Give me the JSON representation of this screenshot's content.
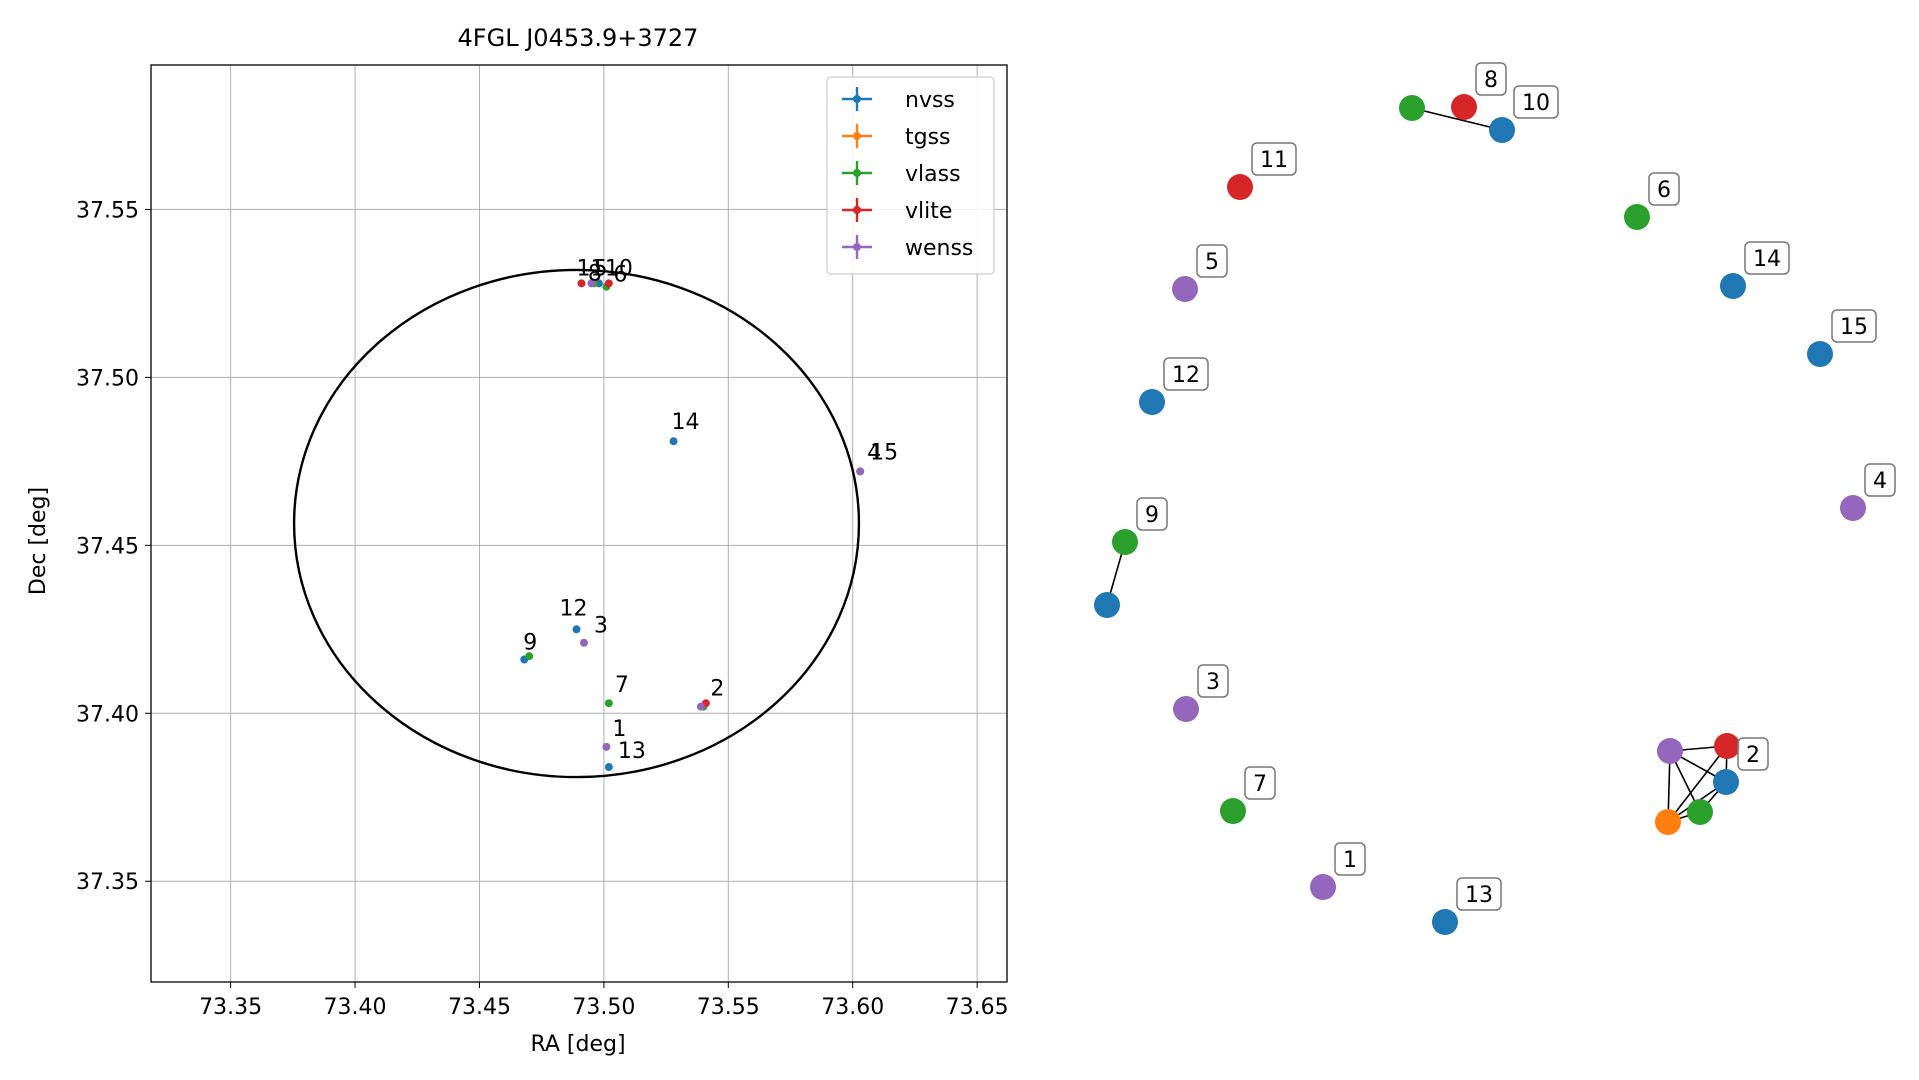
{
  "chart_data": [
    {
      "type": "scatter",
      "title": "4FGL J0453.9+3727",
      "xlabel": "RA [deg]",
      "ylabel": "Dec [deg]",
      "xlim": [
        73.318,
        73.662
      ],
      "ylim": [
        37.32,
        37.593
      ],
      "xticks": [
        73.35,
        73.4,
        73.45,
        73.5,
        73.55,
        73.6,
        73.65
      ],
      "xtick_labels": [
        "73.35",
        "73.40",
        "73.45",
        "73.50",
        "73.55",
        "73.60",
        "73.65"
      ],
      "yticks": [
        37.35,
        37.4,
        37.45,
        37.5,
        37.55
      ],
      "ytick_labels": [
        "37.35",
        "37.40",
        "37.45",
        "37.50",
        "37.55"
      ],
      "grid": true,
      "legend_position": "top-right",
      "ellipse": {
        "center": [
          73.489,
          37.4565
        ],
        "semi_ra": 0.1135,
        "semi_dec": 0.0755
      },
      "series": [
        {
          "name": "nvss",
          "color": "#1f77b4",
          "points": [
            {
              "x": 73.528,
              "y": 37.481,
              "label": "14"
            },
            {
              "x": 73.603,
              "y": 37.472,
              "label": "15"
            },
            {
              "x": 73.489,
              "y": 37.425,
              "label": "12"
            },
            {
              "x": 73.468,
              "y": 37.416,
              "label": "9"
            },
            {
              "x": 73.502,
              "y": 37.384,
              "label": "13"
            },
            {
              "x": 73.54,
              "y": 37.402,
              "label": "2"
            },
            {
              "x": 73.498,
              "y": 37.528,
              "label": "10"
            }
          ]
        },
        {
          "name": "tgss",
          "color": "#ff7f0e",
          "points": [
            {
              "x": 73.539,
              "y": 37.402,
              "label": "2"
            }
          ]
        },
        {
          "name": "vlass",
          "color": "#2ca02c",
          "points": [
            {
              "x": 73.501,
              "y": 37.527,
              "label": "6"
            },
            {
              "x": 73.496,
              "y": 37.528,
              "label": "8"
            },
            {
              "x": 73.47,
              "y": 37.417,
              "label": "9"
            },
            {
              "x": 73.502,
              "y": 37.403,
              "label": "7"
            },
            {
              "x": 73.54,
              "y": 37.402,
              "label": "2"
            }
          ]
        },
        {
          "name": "vlite",
          "color": "#d62728",
          "points": [
            {
              "x": 73.491,
              "y": 37.528,
              "label": "11"
            },
            {
              "x": 73.502,
              "y": 37.528,
              "label": "8"
            },
            {
              "x": 73.541,
              "y": 37.403,
              "label": "2"
            }
          ]
        },
        {
          "name": "wenss",
          "color": "#9467bd",
          "points": [
            {
              "x": 73.495,
              "y": 37.528,
              "label": "5"
            },
            {
              "x": 73.603,
              "y": 37.472,
              "label": "4"
            },
            {
              "x": 73.492,
              "y": 37.421,
              "label": "3"
            },
            {
              "x": 73.501,
              "y": 37.39,
              "label": "1"
            },
            {
              "x": 73.539,
              "y": 37.402,
              "label": "2"
            }
          ]
        }
      ],
      "annotations": [
        "14",
        "4",
        "15",
        "12",
        "3",
        "9",
        "7",
        "2",
        "1",
        "13",
        "11",
        "5",
        "8",
        "6",
        "10"
      ]
    },
    {
      "type": "network",
      "nodes": [
        {
          "id": "10",
          "color": "#1f77b4",
          "label": "10",
          "labeled": true
        },
        {
          "id": "8v",
          "color": "#2ca02c",
          "label": "",
          "labeled": false
        },
        {
          "id": "8",
          "color": "#d62728",
          "label": "8",
          "labeled": true
        },
        {
          "id": "11",
          "color": "#d62728",
          "label": "11",
          "labeled": true
        },
        {
          "id": "6",
          "color": "#2ca02c",
          "label": "6",
          "labeled": true
        },
        {
          "id": "5",
          "color": "#9467bd",
          "label": "5",
          "labeled": true
        },
        {
          "id": "14",
          "color": "#1f77b4",
          "label": "14",
          "labeled": true
        },
        {
          "id": "15",
          "color": "#1f77b4",
          "label": "15",
          "labeled": true
        },
        {
          "id": "12",
          "color": "#1f77b4",
          "label": "12",
          "labeled": true
        },
        {
          "id": "4",
          "color": "#9467bd",
          "label": "4",
          "labeled": true
        },
        {
          "id": "9",
          "color": "#2ca02c",
          "label": "9",
          "labeled": true
        },
        {
          "id": "9n",
          "color": "#1f77b4",
          "label": "",
          "labeled": false
        },
        {
          "id": "3",
          "color": "#9467bd",
          "label": "3",
          "labeled": true
        },
        {
          "id": "7",
          "color": "#2ca02c",
          "label": "7",
          "labeled": true
        },
        {
          "id": "1",
          "color": "#9467bd",
          "label": "1",
          "labeled": true
        },
        {
          "id": "13",
          "color": "#1f77b4",
          "label": "13",
          "labeled": true
        },
        {
          "id": "2w",
          "color": "#9467bd",
          "label": "",
          "labeled": false
        },
        {
          "id": "2r",
          "color": "#d62728",
          "label": "",
          "labeled": false
        },
        {
          "id": "2",
          "color": "#1f77b4",
          "label": "2",
          "labeled": true
        },
        {
          "id": "2o",
          "color": "#ff7f0e",
          "label": "",
          "labeled": false
        },
        {
          "id": "2g",
          "color": "#2ca02c",
          "label": "",
          "labeled": false
        }
      ],
      "edges": [
        [
          "8v",
          "10"
        ],
        [
          "9",
          "9n"
        ],
        [
          "2w",
          "2r"
        ],
        [
          "2w",
          "2"
        ],
        [
          "2w",
          "2o"
        ],
        [
          "2w",
          "2g"
        ],
        [
          "2o",
          "2r"
        ],
        [
          "2o",
          "2"
        ],
        [
          "2o",
          "2g"
        ],
        [
          "2r",
          "2"
        ],
        [
          "2",
          "2g"
        ]
      ]
    }
  ]
}
